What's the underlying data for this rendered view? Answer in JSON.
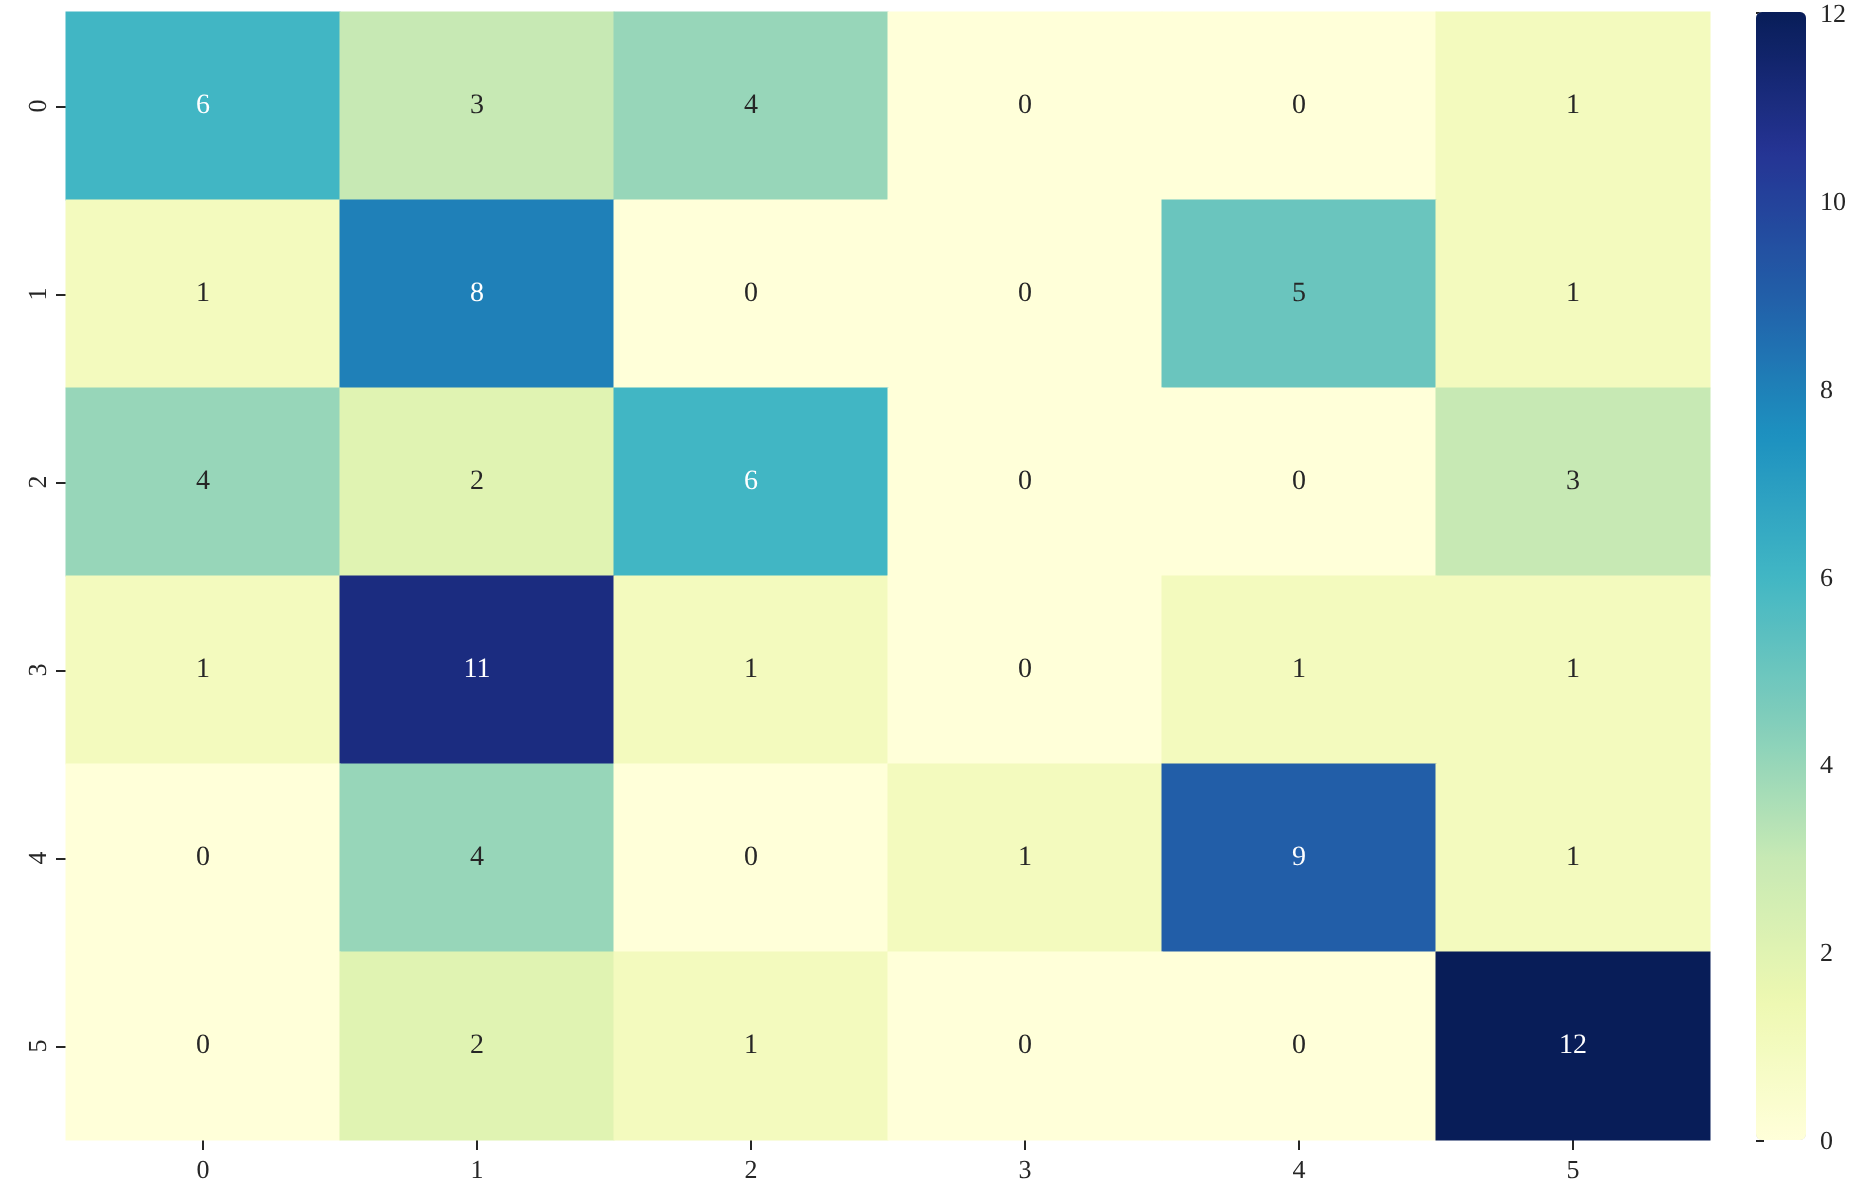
{
  "chart_data": {
    "type": "heatmap",
    "categories": [
      "0",
      "1",
      "2",
      "3",
      "4",
      "5"
    ],
    "y_categories": [
      "0",
      "1",
      "2",
      "3",
      "4",
      "5"
    ],
    "cells": [
      [
        6,
        3,
        4,
        0,
        0,
        1
      ],
      [
        1,
        8,
        0,
        0,
        5,
        1
      ],
      [
        4,
        2,
        6,
        0,
        0,
        3
      ],
      [
        1,
        11,
        1,
        0,
        1,
        1
      ],
      [
        0,
        4,
        0,
        1,
        9,
        1
      ],
      [
        0,
        2,
        1,
        0,
        0,
        12
      ]
    ],
    "clim": [
      0,
      12
    ],
    "cticks": [
      0,
      2,
      4,
      6,
      8,
      10,
      12
    ],
    "data_labels": true
  }
}
